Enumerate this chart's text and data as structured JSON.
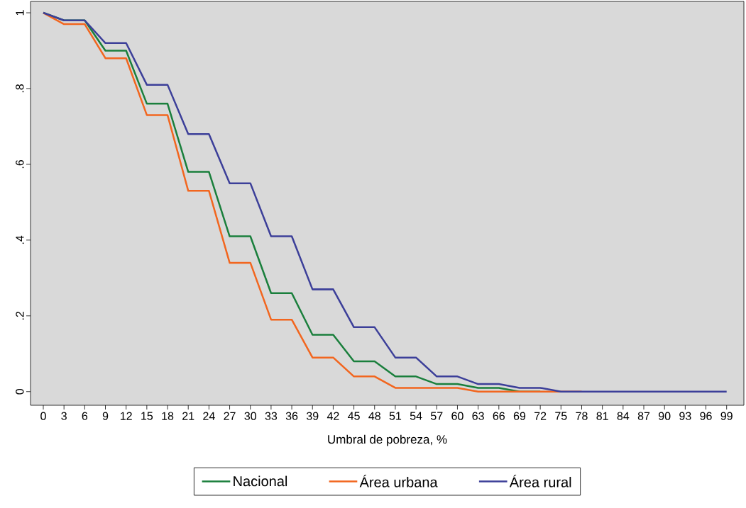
{
  "chart_data": {
    "type": "line",
    "xlabel": "Umbral de pobreza, %",
    "x": [
      0,
      3,
      6,
      9,
      12,
      15,
      18,
      21,
      24,
      27,
      30,
      33,
      36,
      39,
      42,
      45,
      48,
      51,
      54,
      57,
      60,
      63,
      66,
      69,
      72,
      75,
      78,
      81,
      84,
      87,
      90,
      93,
      96,
      99
    ],
    "series": [
      {
        "name": "Nacional",
        "color": "#1a7f3c",
        "values": [
          1,
          0.98,
          0.98,
          0.9,
          0.9,
          0.76,
          0.76,
          0.58,
          0.58,
          0.41,
          0.41,
          0.26,
          0.26,
          0.15,
          0.15,
          0.08,
          0.08,
          0.04,
          0.04,
          0.02,
          0.02,
          0.01,
          0.01,
          0,
          0,
          null,
          null,
          null,
          null,
          null,
          null,
          null,
          null,
          null
        ]
      },
      {
        "name": "Área urbana",
        "color": "#f2661f",
        "values": [
          1,
          0.97,
          0.97,
          0.88,
          0.88,
          0.73,
          0.73,
          0.53,
          0.53,
          0.34,
          0.34,
          0.19,
          0.19,
          0.09,
          0.09,
          0.04,
          0.04,
          0.01,
          0.01,
          0.01,
          0.01,
          0,
          0,
          0,
          0,
          0,
          0,
          null,
          null,
          null,
          null,
          null,
          null,
          null
        ]
      },
      {
        "name": "Área rural",
        "color": "#3c3f99",
        "values": [
          1,
          0.98,
          0.98,
          0.92,
          0.92,
          0.81,
          0.81,
          0.68,
          0.68,
          0.55,
          0.55,
          0.41,
          0.41,
          0.27,
          0.27,
          0.17,
          0.17,
          0.09,
          0.09,
          0.04,
          0.04,
          0.02,
          0.02,
          0.01,
          0.01,
          0,
          0,
          0,
          0,
          0,
          0,
          0,
          0,
          0
        ]
      }
    ],
    "xlim": [
      -1.85,
      101.5
    ],
    "ylim": [
      -0.036,
      1.03
    ],
    "xticks": [
      0,
      3,
      6,
      9,
      12,
      15,
      18,
      21,
      24,
      27,
      30,
      33,
      36,
      39,
      42,
      45,
      48,
      51,
      54,
      57,
      60,
      63,
      66,
      69,
      72,
      75,
      78,
      81,
      84,
      87,
      90,
      93,
      96,
      99
    ],
    "yticks": [
      0,
      {
        "value": 0.2,
        "label": ".2"
      },
      {
        "value": 0.4,
        "label": ".4"
      },
      {
        "value": 0.6,
        "label": ".6"
      },
      {
        "value": 0.8,
        "label": ".8"
      },
      1
    ],
    "grid": false,
    "legend": "bottom",
    "marker": "none",
    "line_style": "solid"
  }
}
